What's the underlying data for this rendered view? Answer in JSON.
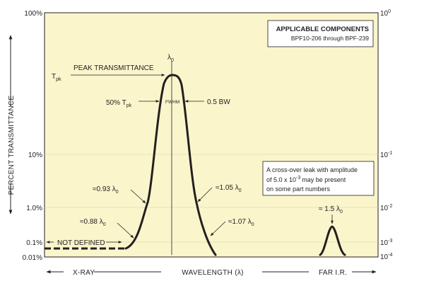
{
  "chart_data": {
    "type": "line",
    "x_label": "WAVELENGTH (λ)",
    "x_left_label": "X-RAY",
    "x_right_label": "FAR I.R.",
    "y_label": "PERCENT TRANSMITTANCE",
    "y_scale": "log",
    "y_ticks_left": [
      "100%",
      "10%",
      "1.0%",
      "0.1%",
      "0.01%"
    ],
    "y_ticks_right": [
      {
        "base": "10",
        "exp": "0"
      },
      {
        "base": "10",
        "exp": "-1"
      },
      {
        "base": "10",
        "exp": "-2"
      },
      {
        "base": "10",
        "exp": "-3"
      },
      {
        "base": "10",
        "exp": "-4"
      }
    ],
    "background_color": "#fbf5cc",
    "line_color": "#231f20",
    "infobox": {
      "title": "APPLICABLE COMPONENTS",
      "subtitle": "BPF10-206 through BPF-239"
    },
    "note": {
      "lines": [
        "A cross-over leak with amplitude",
        "of 5.0 x 10",
        "may be present",
        "on some part numbers"
      ],
      "exp": "-3"
    },
    "annotations": {
      "peak": "PEAK TRANSMITTANCE",
      "tpk": "T",
      "tpk_sub": "pk",
      "lambda0": "λ",
      "lambda0_sub": "0",
      "fifty": "50% T",
      "fwhm": "FWHM",
      "bw": "0.5 BW",
      "l093": "≈0.93 λ",
      "l105": "≈1.05 λ",
      "l088": "≈0.88 λ",
      "l107": "≈1.07 λ",
      "l15": "≈ 1.5 λ",
      "not_defined": "NOT DEFINED"
    }
  }
}
